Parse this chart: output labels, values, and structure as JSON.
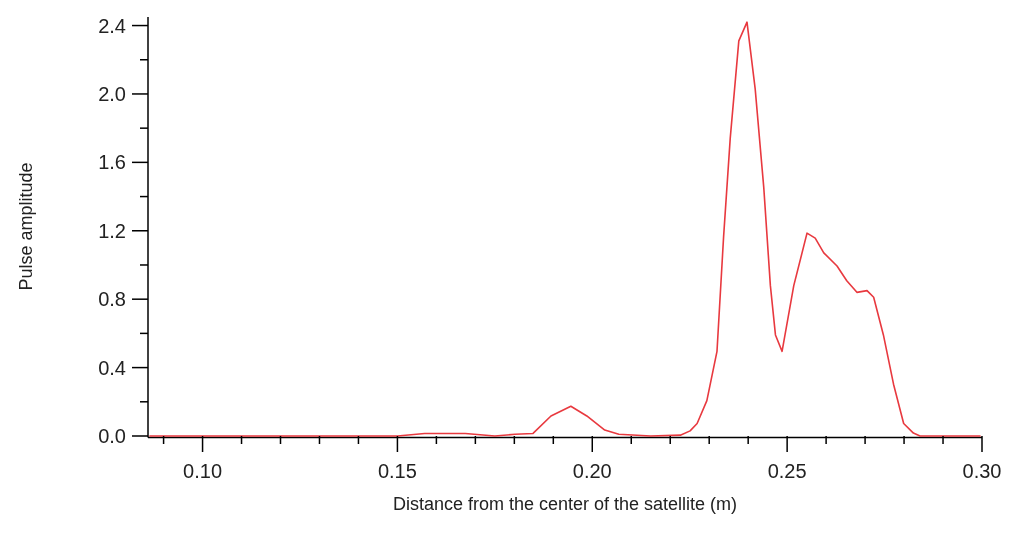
{
  "chart_data": {
    "type": "line",
    "xlabel": "Distance from the center of the satellite (m)",
    "ylabel": "Pulse amplitude",
    "x": [
      0.0865,
      0.12,
      0.15,
      0.157,
      0.162,
      0.1674,
      0.175,
      0.1802,
      0.1848,
      0.1894,
      0.1945,
      0.1986,
      0.2032,
      0.2068,
      0.215,
      0.2226,
      0.2251,
      0.2269,
      0.2294,
      0.232,
      0.2337,
      0.2354,
      0.2376,
      0.2397,
      0.2418,
      0.244,
      0.2457,
      0.247,
      0.2487,
      0.2517,
      0.2551,
      0.2572,
      0.2594,
      0.2628,
      0.2653,
      0.2679,
      0.2705,
      0.2722,
      0.2747,
      0.2773,
      0.2799,
      0.2824,
      0.2841,
      0.2995
    ],
    "series": [
      {
        "color": "#e8393f",
        "values": [
          0,
          0,
          0,
          0.015,
          0.015,
          0.015,
          0,
          0.01,
          0.015,
          0.117,
          0.174,
          0.117,
          0.035,
          0.01,
          0,
          0.005,
          0.03,
          0.073,
          0.207,
          0.495,
          1.167,
          1.742,
          2.31,
          2.42,
          2.03,
          1.454,
          0.879,
          0.591,
          0.495,
          0.879,
          1.186,
          1.157,
          1.071,
          0.994,
          0.908,
          0.84,
          0.85,
          0.811,
          0.591,
          0.303,
          0.073,
          0.017,
          0,
          0
        ]
      }
    ],
    "xlim": [
      0.086,
      0.3
    ],
    "ylim": [
      0,
      2.45
    ],
    "xticks": [
      {
        "value": 0.09,
        "label": null
      },
      {
        "value": 0.1,
        "label": "0.10"
      },
      {
        "value": 0.11,
        "label": null
      },
      {
        "value": 0.12,
        "label": null
      },
      {
        "value": 0.13,
        "label": null
      },
      {
        "value": 0.14,
        "label": null
      },
      0.15,
      {
        "value": 0.16,
        "label": null
      },
      {
        "value": 0.17,
        "label": null
      },
      {
        "value": 0.18,
        "label": null
      },
      {
        "value": 0.19,
        "label": null
      },
      {
        "value": 0.2,
        "label": "0.20"
      },
      {
        "value": 0.21,
        "label": null
      },
      {
        "value": 0.22,
        "label": null
      },
      {
        "value": 0.23,
        "label": null
      },
      {
        "value": 0.24,
        "label": null
      },
      0.25,
      {
        "value": 0.26,
        "label": null
      },
      {
        "value": 0.27,
        "label": null
      },
      {
        "value": 0.28,
        "label": null
      },
      {
        "value": 0.29,
        "label": null
      },
      {
        "value": 0.3,
        "label": "0.30"
      }
    ],
    "yticks": [
      {
        "value": 0,
        "label": "0.0"
      },
      {
        "value": 0.2,
        "label": null
      },
      0.4,
      {
        "value": 0.6,
        "label": null
      },
      0.8,
      {
        "value": 1.0,
        "label": null
      },
      1.2,
      {
        "value": 1.4,
        "label": null
      },
      1.6,
      {
        "value": 1.8,
        "label": null
      },
      {
        "value": 2,
        "label": "2.0"
      },
      {
        "value": 2.2,
        "label": null
      },
      2.4
    ],
    "marker": "none",
    "line_style": "solid"
  }
}
